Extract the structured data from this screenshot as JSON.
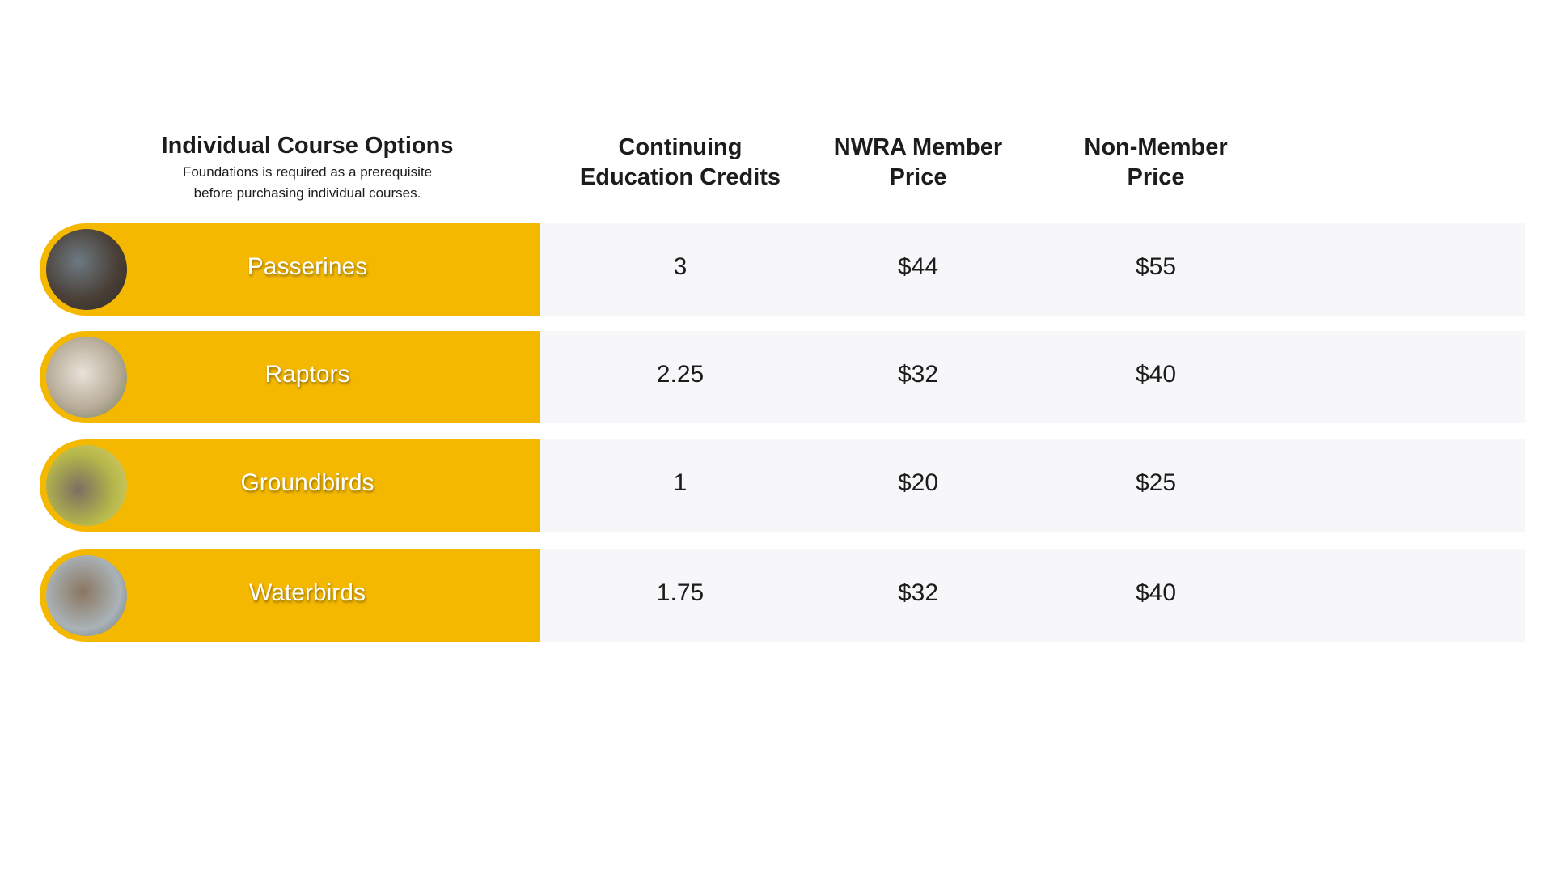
{
  "header": {
    "title": "Individual Course Options",
    "subtitle": [
      "Foundations is required as a prerequisite",
      "before purchasing individual courses."
    ]
  },
  "columns": [
    [
      "Continuing",
      "Education Credits"
    ],
    [
      "NWRA Member",
      "Price"
    ],
    [
      "Non-Member",
      "Price"
    ]
  ],
  "rows": [
    {
      "course": "Passerines",
      "cells": [
        "3",
        "$44",
        "$55"
      ]
    },
    {
      "course": "Raptors",
      "cells": [
        "2.25",
        "$32",
        "$40"
      ]
    },
    {
      "course": "Groundbirds",
      "cells": [
        "1",
        "$20",
        "$25"
      ]
    },
    {
      "course": "Waterbirds",
      "cells": [
        "1.75",
        "$32",
        "$40"
      ]
    }
  ]
}
